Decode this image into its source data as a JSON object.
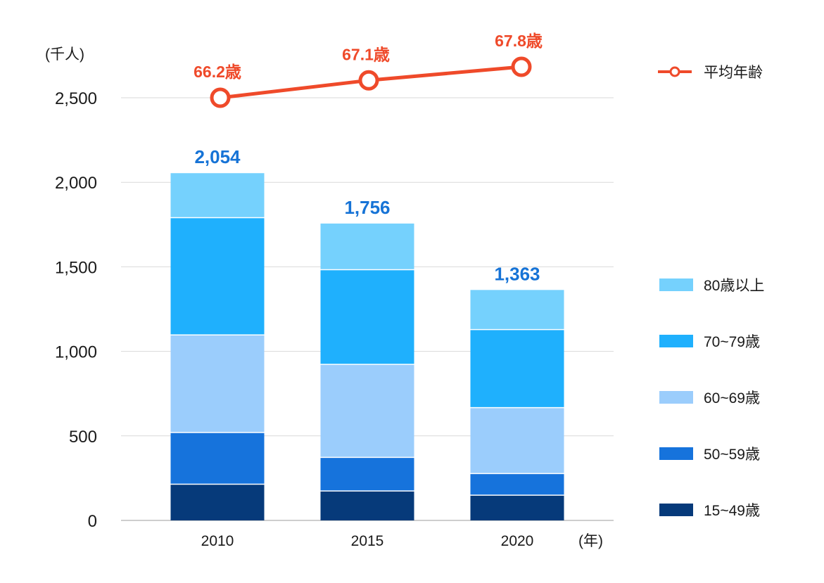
{
  "chart_data": {
    "type": "bar",
    "stacked": true,
    "categories": [
      "2010",
      "2015",
      "2020"
    ],
    "series": [
      {
        "name": "15~49歳",
        "color": "#063a7a",
        "values": [
          214,
          174,
          149
        ]
      },
      {
        "name": "50~59歳",
        "color": "#1673dc",
        "values": [
          306,
          199,
          128
        ]
      },
      {
        "name": "60~69歳",
        "color": "#9bcdfc",
        "values": [
          577,
          550,
          390
        ]
      },
      {
        "name": "70~79歳",
        "color": "#1fb0fd",
        "values": [
          694,
          560,
          462
        ]
      },
      {
        "name": "80歳以上",
        "color": "#75d1fd",
        "values": [
          263,
          273,
          234
        ]
      }
    ],
    "totals": [
      "2,054",
      "1,756",
      "1,363"
    ],
    "total_values": [
      2054,
      1756,
      1363
    ],
    "ylabel": "(千人)",
    "xlabel": "(年)",
    "ylim": [
      0,
      2500
    ],
    "yticks": [
      0,
      500,
      1000,
      1500,
      2000,
      2500
    ],
    "ytick_labels": [
      "0",
      "500",
      "1,000",
      "1,500",
      "2,000",
      "2,500"
    ],
    "line": {
      "name": "平均年齢",
      "color": "#ef4a2a",
      "values": [
        66.2,
        67.1,
        67.8
      ],
      "labels": [
        "66.2歳",
        "67.1歳",
        "67.8歳"
      ]
    },
    "legend_position": "right"
  }
}
